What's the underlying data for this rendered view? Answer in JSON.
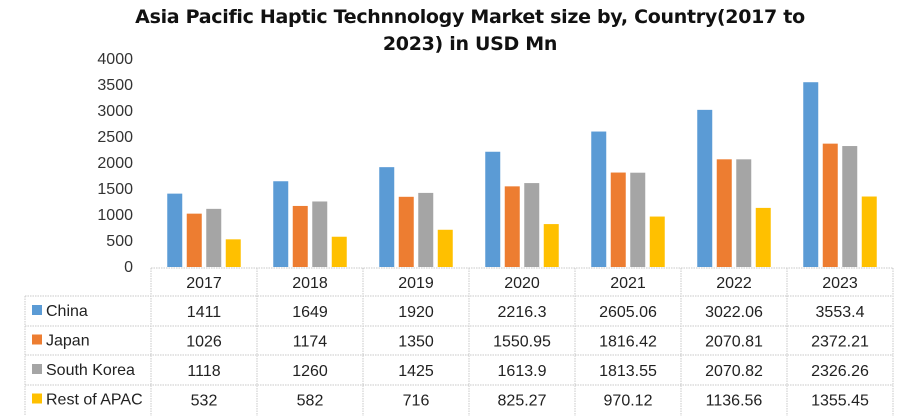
{
  "chart_data": {
    "type": "bar",
    "title": "Asia Pacific Haptic Technnology Market size by, Country(2017 to 2023) in USD Mn",
    "title_lines": [
      "Asia Pacific Haptic Technnology Market size by, Country(2017 to",
      "2023) in USD Mn"
    ],
    "categories": [
      "2017",
      "2018",
      "2019",
      "2020",
      "2021",
      "2022",
      "2023"
    ],
    "series": [
      {
        "name": "China",
        "color": "#5B9BD5",
        "values": [
          1411,
          1649,
          1920,
          2216.3,
          2605.06,
          3022.06,
          3553.4
        ],
        "labels": [
          "1411",
          "1649",
          "1920",
          "2216.3",
          "2605.06",
          "3022.06",
          "3553.4"
        ]
      },
      {
        "name": "Japan",
        "color": "#ED7D31",
        "values": [
          1026,
          1174,
          1350,
          1550.95,
          1816.42,
          2070.81,
          2372.21
        ],
        "labels": [
          "1026",
          "1174",
          "1350",
          "1550.95",
          "1816.42",
          "2070.81",
          "2372.21"
        ]
      },
      {
        "name": "South Korea",
        "color": "#A5A5A5",
        "values": [
          1118,
          1260,
          1425,
          1613.9,
          1813.55,
          2070.82,
          2326.26
        ],
        "labels": [
          "1118",
          "1260",
          "1425",
          "1613.9",
          "1813.55",
          "2070.82",
          "2326.26"
        ]
      },
      {
        "name": "Rest of APAC",
        "color": "#FFC000",
        "values": [
          532,
          582,
          716,
          825.27,
          970.12,
          1136.56,
          1355.45
        ],
        "labels": [
          "532",
          "582",
          "716",
          "825.27",
          "970.12",
          "1136.56",
          "1355.45"
        ]
      }
    ],
    "yticks": [
      "0",
      "500",
      "1000",
      "1500",
      "2000",
      "2500",
      "3000",
      "3500",
      "4000"
    ],
    "ylim": [
      0,
      4000
    ],
    "xlabel": "",
    "ylabel": "",
    "grid": false,
    "legend": "data-table"
  }
}
